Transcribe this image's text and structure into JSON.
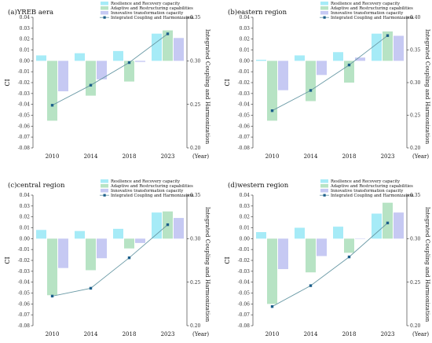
{
  "chart_data": [
    {
      "type": "bar",
      "title": "(a)YREB aera",
      "categories": [
        "2010",
        "2014",
        "2018",
        "2023"
      ],
      "x_unit_label": "(Year)",
      "ylabel": "CI",
      "y2label": "Integrated Coupling and Harmonization",
      "ylim": [
        -0.08,
        0.04
      ],
      "y_ticks": [
        "0.04",
        "0.03",
        "0.02",
        "0.01",
        "0.00",
        "-0.01",
        "-0.02",
        "-0.03",
        "-0.04",
        "-0.05",
        "-0.06",
        "-0.07",
        "-0.08"
      ],
      "y2lim": [
        0.2,
        0.35
      ],
      "y2_ticks": [
        "0.35",
        "0.30",
        "0.25",
        "0.20"
      ],
      "series": [
        {
          "name": "Resilience and Recovery capacity",
          "color": "#a6ebf7",
          "values": [
            0.005,
            0.007,
            0.009,
            0.025
          ]
        },
        {
          "name": "Adaptive and Restructuring capabilities",
          "color": "#b7e3c4",
          "values": [
            -0.055,
            -0.032,
            -0.019,
            0.028
          ]
        },
        {
          "name": "Innovative transformation capacity",
          "color": "#c6c9f3",
          "values": [
            -0.028,
            -0.017,
            -0.001,
            0.021
          ]
        }
      ],
      "line_series": {
        "name": "Integrated Coupling and Harmonization",
        "color": "#6a9aa6",
        "marker_color": "#1d5f8a",
        "values": [
          0.249,
          0.272,
          0.298,
          0.331
        ]
      },
      "legend_position": "top"
    },
    {
      "type": "bar",
      "title": "(b)eastern region",
      "categories": [
        "2010",
        "2014",
        "2018",
        "2023"
      ],
      "x_unit_label": "(Year)",
      "ylabel": "CI",
      "y2label": "Integrated Coupling and Harmonization",
      "ylim": [
        -0.08,
        0.04
      ],
      "y_ticks": [
        "0.04",
        "0.03",
        "0.02",
        "0.01",
        "0.00",
        "-0.01",
        "-0.02",
        "-0.03",
        "-0.04",
        "-0.05",
        "-0.06",
        "-0.07",
        "-0.08"
      ],
      "y2lim": [
        0.2,
        0.4
      ],
      "y2_ticks": [
        "0.40",
        "0.35",
        "0.30",
        "0.25",
        "0.20"
      ],
      "series": [
        {
          "name": "Resilience and Recovery capacity",
          "color": "#a6ebf7",
          "values": [
            0.001,
            0.005,
            0.008,
            0.025
          ]
        },
        {
          "name": "Adaptive and Restructuring capabilities",
          "color": "#b7e3c4",
          "values": [
            -0.055,
            -0.037,
            -0.02,
            0.027
          ]
        },
        {
          "name": "Innovative transformation capacity",
          "color": "#c6c9f3",
          "values": [
            -0.027,
            -0.013,
            0.003,
            0.023
          ]
        }
      ],
      "line_series": {
        "name": "Integrated Coupling and Harmonization",
        "color": "#6a9aa6",
        "marker_color": "#1d5f8a",
        "values": [
          0.257,
          0.288,
          0.327,
          0.372
        ]
      },
      "legend_position": "top"
    },
    {
      "type": "bar",
      "title": "(c)central region",
      "categories": [
        "2010",
        "2014",
        "2018",
        "2023"
      ],
      "x_unit_label": "(Year)",
      "ylabel": "CI",
      "y2label": "Integrated Coupling and Harmonization",
      "ylim": [
        -0.08,
        0.04
      ],
      "y_ticks": [
        "0.04",
        "0.03",
        "0.02",
        "0.01",
        "0.00",
        "-0.01",
        "-0.02",
        "-0.03",
        "-0.04",
        "-0.05",
        "-0.06",
        "-0.07",
        "-0.08"
      ],
      "y2lim": [
        0.2,
        0.35
      ],
      "y2_ticks": [
        "0.35",
        "0.30",
        "0.25",
        "0.20"
      ],
      "series": [
        {
          "name": "Resilience and Recovery capacity",
          "color": "#a6ebf7",
          "values": [
            0.008,
            0.007,
            0.009,
            0.024
          ]
        },
        {
          "name": "Adaptive and Restructuring capabilities",
          "color": "#b7e3c4",
          "values": [
            -0.052,
            -0.029,
            -0.009,
            0.025
          ]
        },
        {
          "name": "Innovative transformation capacity",
          "color": "#c6c9f3",
          "values": [
            -0.027,
            -0.018,
            -0.004,
            0.019
          ]
        }
      ],
      "line_series": {
        "name": "Integrated Coupling and Harmonization",
        "color": "#6a9aa6",
        "marker_color": "#1d5f8a",
        "values": [
          0.234,
          0.243,
          0.278,
          0.316
        ]
      },
      "legend_position": "top"
    },
    {
      "type": "bar",
      "title": "(d)western region",
      "categories": [
        "2010",
        "2014",
        "2018",
        "2023"
      ],
      "x_unit_label": "(Year)",
      "ylabel": "CI",
      "y2label": "Integrated Coupling and Harmonization",
      "ylim": [
        -0.08,
        0.04
      ],
      "y_ticks": [
        "0.04",
        "0.03",
        "0.02",
        "0.01",
        "0.00",
        "-0.01",
        "-0.02",
        "-0.03",
        "-0.04",
        "-0.05",
        "-0.06",
        "-0.07",
        "-0.08"
      ],
      "y2lim": [
        0.2,
        0.35
      ],
      "y2_ticks": [
        "0.35",
        "0.30",
        "0.25",
        "0.20"
      ],
      "series": [
        {
          "name": "Resilience and Recovery capacity",
          "color": "#a6ebf7",
          "values": [
            0.006,
            0.01,
            0.011,
            0.023
          ]
        },
        {
          "name": "Adaptive and Restructuring capabilities",
          "color": "#b7e3c4",
          "values": [
            -0.06,
            -0.031,
            -0.013,
            0.033
          ]
        },
        {
          "name": "Innovative transformation capacity",
          "color": "#c6c9f3",
          "values": [
            -0.028,
            -0.016,
            0.0,
            0.024
          ]
        }
      ],
      "line_series": {
        "name": "Integrated Coupling and Harmonization",
        "color": "#6a9aa6",
        "marker_color": "#1d5f8a",
        "values": [
          0.222,
          0.246,
          0.279,
          0.318
        ]
      },
      "legend_position": "top"
    }
  ]
}
